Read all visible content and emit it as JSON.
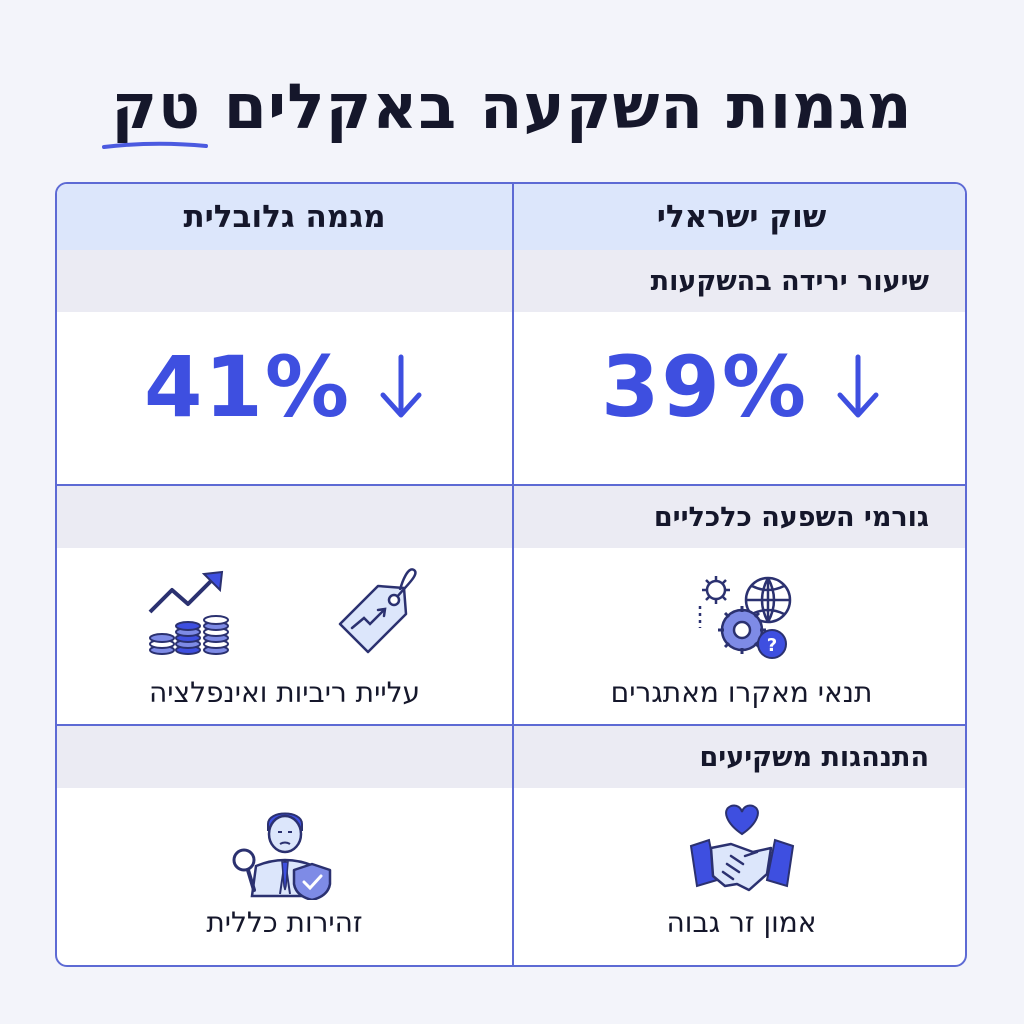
{
  "title": "מגמות השקעה באקלים טק",
  "columns": {
    "israeli": {
      "header": "שוק ישראלי"
    },
    "global": {
      "header": "מגמה גלובלית"
    }
  },
  "sections": {
    "decline": {
      "heading": "שיעור ירידה בהשקעות",
      "israeli_value": "39%",
      "global_value": "41%",
      "direction_icon": "arrow-down-icon"
    },
    "economic": {
      "heading": "גורמי השפעה כלכליים",
      "israeli_caption": "תנאי מאקרו מאתגרים",
      "israeli_icons": [
        "gears-globe-question-icon"
      ],
      "global_caption": "עליית ריביות ואינפלציה",
      "global_icons": [
        "coins-trend-up-icon",
        "price-tag-up-icon"
      ]
    },
    "behavior": {
      "heading": "התנהגות משקיעים",
      "israeli_caption": "אמון זר גבוה",
      "israeli_icons": [
        "handshake-heart-icon"
      ],
      "global_caption": "זהירות כללית",
      "global_icons": [
        "investor-magnifier-shield-icon"
      ]
    }
  },
  "colors": {
    "accent": "#3e4fe0",
    "border": "#5d6ad4",
    "header_bg": "#dce6fb",
    "section_bg": "#ebebf3"
  }
}
